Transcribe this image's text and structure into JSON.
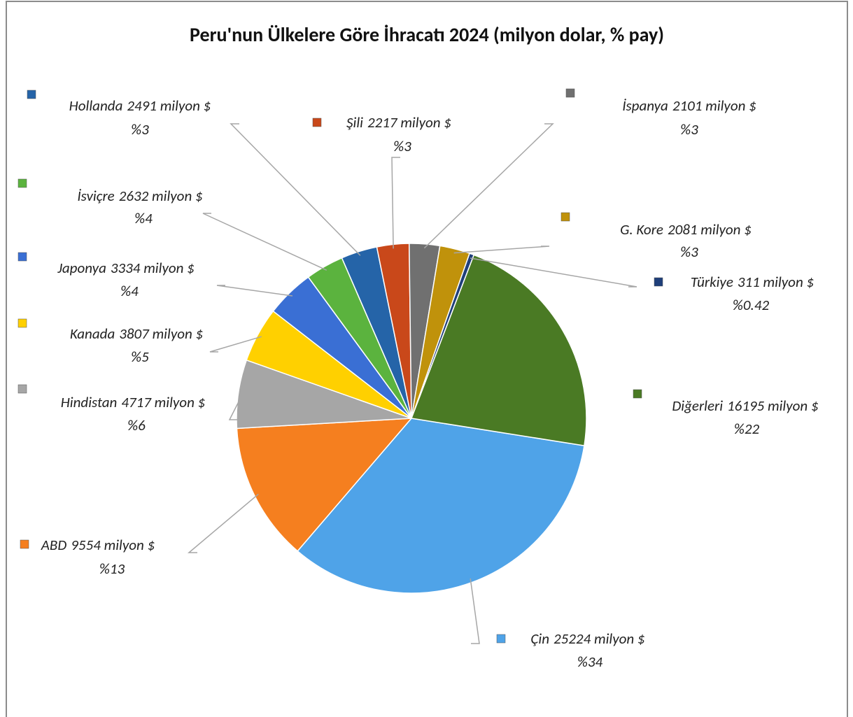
{
  "chart_data": {
    "type": "pie",
    "title": "Peru'nun Ülkelere Göre İhracatı 2024 (milyon dolar, % pay)",
    "categories": [
      "Çin",
      "ABD",
      "Hindistan",
      "Kanada",
      "Japonya",
      "İsviçre",
      "Hollanda",
      "Şili",
      "İspanya",
      "G. Kore",
      "Türkiye",
      "Diğerleri"
    ],
    "values": [
      25224,
      9554,
      4717,
      3807,
      3334,
      2632,
      2491,
      2217,
      2101,
      2081,
      311,
      16195
    ],
    "value_labels": [
      "25224 milyon $",
      "9554 milyon $",
      "4717 milyon $",
      "3807 milyon $",
      "3334 milyon $",
      "2632 milyon $",
      "2491 milyon $",
      "2217 milyon $",
      "2101 milyon $",
      "2081 milyon $",
      "311 milyon $",
      "16195 milyon $"
    ],
    "percentages": [
      34,
      13,
      6,
      5,
      4,
      4,
      3,
      3,
      3,
      3,
      0.42,
      22
    ],
    "percentage_labels": [
      "%34",
      "%13",
      "%6",
      "%5",
      "%4",
      "%4",
      "%3",
      "%3",
      "%3",
      "%3",
      "%0.42",
      "%22"
    ],
    "colors": [
      "#4fa3e8",
      "#f57f1f",
      "#a6a6a6",
      "#ffd000",
      "#3a6fd4",
      "#5bb33e",
      "#2564a8",
      "#c9481a",
      "#707070",
      "#c0920b",
      "#1f3f7a",
      "#4a7a24"
    ]
  }
}
